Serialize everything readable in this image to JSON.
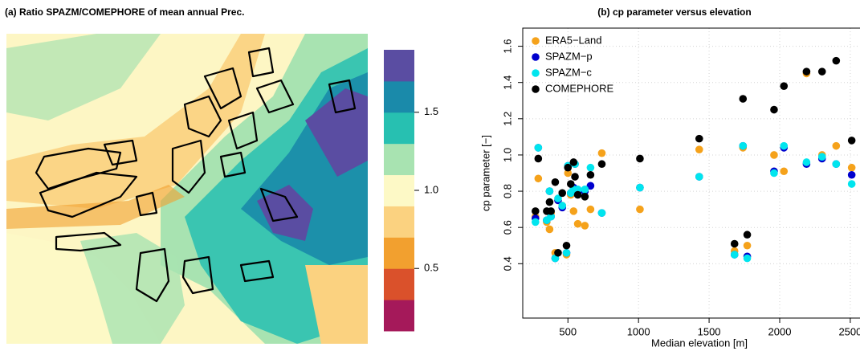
{
  "chart_data": [
    {
      "type": "map",
      "title": "(a) Ratio SPAZM/COMEPHORE of mean annual Prec.",
      "colorbar_breaks": [
        0.1,
        0.3,
        0.5,
        0.7,
        0.9,
        1.1,
        1.3,
        1.5,
        1.7,
        1.9
      ],
      "colorbar_colors": [
        "#a5195a",
        "#da512b",
        "#f2a02f",
        "#fbd280",
        "#fdf9c6",
        "#a8e3b1",
        "#27c0b1",
        "#1a8aaa",
        "#5a4da2"
      ],
      "ylim": [
        0.1,
        1.9
      ],
      "yticks": [
        0.5,
        {
          "value": 1,
          "label": "1.0"
        },
        1.5
      ]
    },
    {
      "type": "scatter",
      "title": "(b) cp parameter versus elevation",
      "xlabel": "Median elevation [m]",
      "ylabel": "cp parameter [−]",
      "x": [
        270,
        290,
        350,
        370,
        380,
        410,
        430,
        460,
        490,
        500,
        520,
        540,
        550,
        570,
        620,
        660,
        740,
        1010,
        1430,
        1680,
        1740,
        1770,
        1960,
        2030,
        2190,
        2300,
        2400,
        2510
      ],
      "series": [
        {
          "name": "ERA5−Land",
          "color": "#f5a21b",
          "values": [
            0.66,
            0.87,
            0.63,
            0.59,
            0.68,
            0.46,
            0.75,
            0.72,
            0.45,
            0.9,
            0.78,
            0.69,
            0.95,
            0.62,
            0.61,
            0.7,
            1.01,
            0.7,
            1.03,
            0.47,
            1.04,
            0.5,
            1.0,
            0.91,
            1.45,
            1.0,
            1.05,
            0.93
          ]
        },
        {
          "name": "SPAZM−p",
          "color": "#0000cd",
          "values": [
            0.65,
            1.04,
            0.64,
            0.8,
            0.66,
            0.43,
            0.75,
            0.71,
            0.46,
            0.94,
            0.79,
            0.82,
            0.95,
            0.79,
            0.8,
            0.83,
            0.68,
            0.82,
            0.88,
            0.45,
            1.05,
            0.44,
            0.91,
            1.04,
            0.95,
            0.98,
            0.95,
            0.89
          ]
        },
        {
          "name": "SPAZM−c",
          "color": "#00e5ee",
          "values": [
            0.63,
            1.04,
            0.64,
            0.8,
            0.66,
            0.43,
            0.76,
            0.72,
            0.46,
            0.94,
            0.79,
            0.81,
            0.95,
            0.81,
            0.81,
            0.93,
            0.68,
            0.82,
            0.88,
            0.45,
            1.05,
            0.43,
            0.9,
            1.05,
            0.96,
            0.99,
            0.95,
            0.84
          ]
        },
        {
          "name": "COMEPHORE",
          "color": "#000000",
          "values": [
            0.69,
            0.98,
            0.69,
            0.74,
            0.69,
            0.85,
            0.46,
            0.79,
            0.5,
            0.93,
            0.84,
            0.96,
            0.88,
            0.78,
            0.77,
            0.89,
            0.95,
            0.98,
            1.09,
            0.51,
            1.31,
            0.56,
            1.25,
            1.38,
            1.46,
            1.46,
            1.52,
            1.08
          ]
        }
      ],
      "xlim": [
        180,
        2620
      ],
      "ylim": [
        0.1,
        1.7
      ],
      "xticks": [
        500,
        1000,
        1500,
        2000,
        2500
      ],
      "yticks": [
        0.4,
        0.6,
        0.8,
        {
          "value": 1,
          "label": "1.0"
        },
        1.2,
        1.4,
        1.6
      ],
      "grid": true,
      "legend": "topleft"
    }
  ]
}
